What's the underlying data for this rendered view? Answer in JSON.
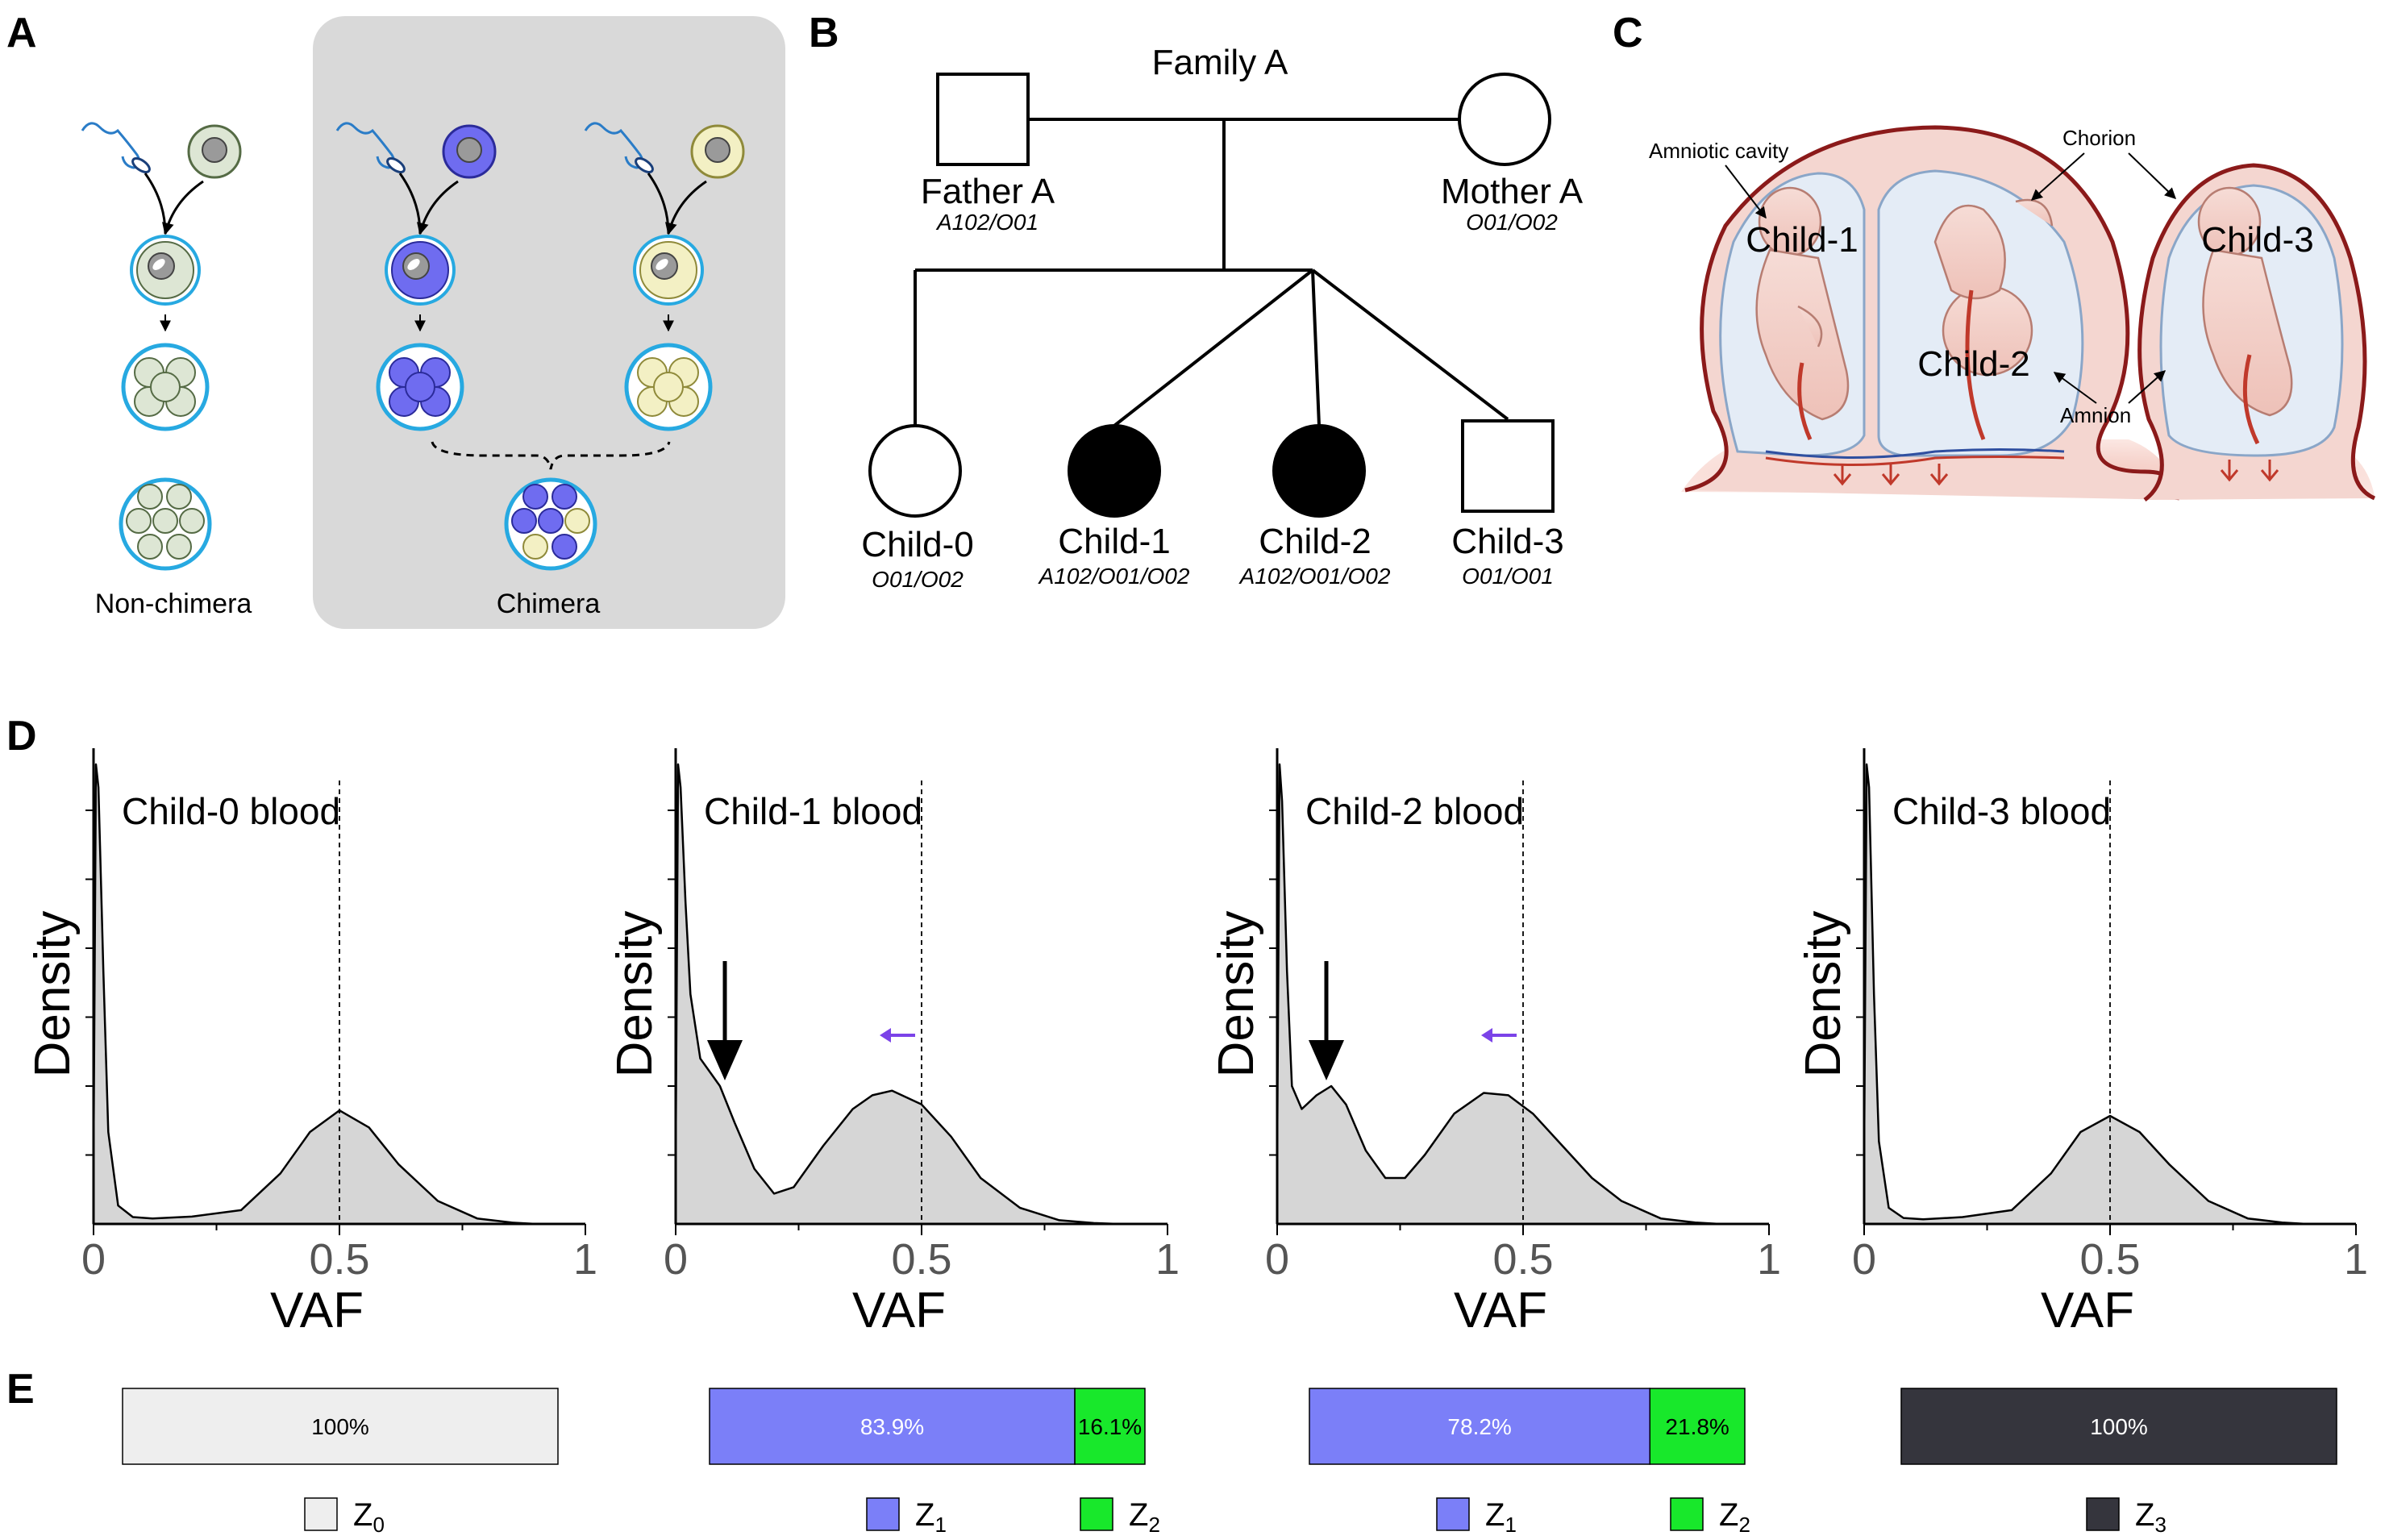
{
  "panels": {
    "A": {
      "letter": "A",
      "non_chimera_label": "Non-chimera",
      "chimera_label": "Chimera"
    },
    "B": {
      "letter": "B",
      "family_title": "Family A",
      "father": {
        "name": "Father A",
        "genotype": "A102/O01"
      },
      "mother": {
        "name": "Mother A",
        "genotype": "O01/O02"
      },
      "children": [
        {
          "name": "Child-0",
          "genotype": "O01/O02",
          "sex": "female",
          "affected": false
        },
        {
          "name": "Child-1",
          "genotype": "A102/O01/O02",
          "sex": "female",
          "affected": true
        },
        {
          "name": "Child-2",
          "genotype": "A102/O01/O02",
          "sex": "female",
          "affected": true
        },
        {
          "name": "Child-3",
          "genotype": "O01/O01",
          "sex": "male",
          "affected": false
        }
      ]
    },
    "C": {
      "letter": "C",
      "labels": {
        "amniotic_cavity": "Amniotic cavity",
        "chorion": "Chorion",
        "amnion": "Amnion",
        "child1": "Child-1",
        "child2": "Child-2",
        "child3": "Child-3"
      }
    },
    "D": {
      "letter": "D"
    },
    "E": {
      "letter": "E"
    }
  },
  "chart_data": [
    {
      "type": "area",
      "title": "Child-0 blood",
      "xlabel": "VAF",
      "ylabel": "Density",
      "xlim": [
        0,
        1
      ],
      "xticks": [
        "0",
        "0.5",
        "1"
      ],
      "reference_line_x": 0.5,
      "x": [
        0,
        0.005,
        0.01,
        0.02,
        0.03,
        0.05,
        0.08,
        0.12,
        0.2,
        0.3,
        0.38,
        0.44,
        0.5,
        0.56,
        0.62,
        0.7,
        0.78,
        0.85,
        0.9
      ],
      "y": [
        0.15,
        1.0,
        0.95,
        0.55,
        0.2,
        0.04,
        0.015,
        0.012,
        0.016,
        0.03,
        0.11,
        0.2,
        0.247,
        0.21,
        0.13,
        0.05,
        0.012,
        0.003,
        0.0
      ]
    },
    {
      "type": "area",
      "title": "Child-1 blood",
      "xlabel": "VAF",
      "ylabel": "Density",
      "xlim": [
        0,
        1
      ],
      "xticks": [
        "0",
        "0.5",
        "1"
      ],
      "reference_line_x": 0.5,
      "x": [
        0,
        0.005,
        0.01,
        0.02,
        0.03,
        0.05,
        0.07,
        0.09,
        0.12,
        0.16,
        0.2,
        0.24,
        0.3,
        0.36,
        0.4,
        0.44,
        0.5,
        0.56,
        0.62,
        0.7,
        0.78,
        0.85,
        0.9
      ],
      "y": [
        0.15,
        1.0,
        0.95,
        0.7,
        0.5,
        0.36,
        0.33,
        0.3,
        0.22,
        0.12,
        0.066,
        0.08,
        0.17,
        0.25,
        0.28,
        0.29,
        0.26,
        0.19,
        0.1,
        0.035,
        0.008,
        0.002,
        0.0
      ],
      "annotations": [
        "black arrow near VAF 0.1 (minor peak)",
        "purple arrow shifting peak left of 0.5"
      ]
    },
    {
      "type": "area",
      "title": "Child-2 blood",
      "xlabel": "VAF",
      "ylabel": "Density",
      "xlim": [
        0,
        1
      ],
      "xticks": [
        "0",
        "0.5",
        "1"
      ],
      "reference_line_x": 0.5,
      "x": [
        0,
        0.005,
        0.01,
        0.02,
        0.03,
        0.05,
        0.08,
        0.11,
        0.14,
        0.18,
        0.22,
        0.26,
        0.3,
        0.36,
        0.42,
        0.47,
        0.52,
        0.58,
        0.64,
        0.7,
        0.78,
        0.85,
        0.9
      ],
      "y": [
        0.15,
        1.0,
        0.92,
        0.55,
        0.3,
        0.25,
        0.28,
        0.3,
        0.26,
        0.16,
        0.1,
        0.1,
        0.15,
        0.24,
        0.285,
        0.28,
        0.24,
        0.17,
        0.1,
        0.05,
        0.012,
        0.003,
        0.0
      ],
      "annotations": [
        "black arrow near VAF 0.1 (minor peak)",
        "purple arrow shifting peak left of 0.5"
      ]
    },
    {
      "type": "area",
      "title": "Child-3 blood",
      "xlabel": "VAF",
      "ylabel": "Density",
      "xlim": [
        0,
        1
      ],
      "xticks": [
        "0",
        "0.5",
        "1"
      ],
      "reference_line_x": 0.5,
      "x": [
        0,
        0.005,
        0.01,
        0.02,
        0.03,
        0.05,
        0.08,
        0.12,
        0.2,
        0.3,
        0.38,
        0.44,
        0.5,
        0.56,
        0.62,
        0.7,
        0.78,
        0.85,
        0.9
      ],
      "y": [
        0.15,
        1.0,
        0.95,
        0.5,
        0.18,
        0.035,
        0.013,
        0.01,
        0.015,
        0.03,
        0.11,
        0.2,
        0.235,
        0.2,
        0.13,
        0.05,
        0.012,
        0.003,
        0.0
      ]
    },
    {
      "type": "bar",
      "orientation": "horizontal-stacked",
      "series": [
        {
          "name": "Z0",
          "label": "100%",
          "value": 100,
          "color": "#eeeeee",
          "label_color": "#000000"
        }
      ],
      "legend": [
        {
          "name": "Z",
          "sub": "0",
          "color": "#eeeeee"
        }
      ]
    },
    {
      "type": "bar",
      "orientation": "horizontal-stacked",
      "series": [
        {
          "name": "Z1",
          "label": "83.9%",
          "value": 83.9,
          "color": "#7b7ff8",
          "label_color": "#ffffff"
        },
        {
          "name": "Z2",
          "label": "16.1%",
          "value": 16.1,
          "color": "#18e82b",
          "label_color": "#000000"
        }
      ],
      "legend": [
        {
          "name": "Z",
          "sub": "1",
          "color": "#7b7ff8"
        },
        {
          "name": "Z",
          "sub": "2",
          "color": "#18e82b"
        }
      ]
    },
    {
      "type": "bar",
      "orientation": "horizontal-stacked",
      "series": [
        {
          "name": "Z1",
          "label": "78.2%",
          "value": 78.2,
          "color": "#7b7ff8",
          "label_color": "#ffffff"
        },
        {
          "name": "Z2",
          "label": "21.8%",
          "value": 21.8,
          "color": "#18e82b",
          "label_color": "#000000"
        }
      ],
      "legend": [
        {
          "name": "Z",
          "sub": "1",
          "color": "#7b7ff8"
        },
        {
          "name": "Z",
          "sub": "2",
          "color": "#18e82b"
        }
      ]
    },
    {
      "type": "bar",
      "orientation": "horizontal-stacked",
      "series": [
        {
          "name": "Z3",
          "label": "100%",
          "value": 100,
          "color": "#35353d",
          "label_color": "#ffffff"
        }
      ],
      "legend": [
        {
          "name": "Z",
          "sub": "3",
          "color": "#35353d"
        }
      ]
    }
  ],
  "colors": {
    "density_fill": "#d6d6d6",
    "chimera_bg": "#d9d9d9",
    "zona": "#27a9e1",
    "cell_green": "#dde6d4",
    "cell_blue": "#6f6cf0",
    "cell_yellow": "#f3f0c4",
    "chorion": "#8b1a1a",
    "purple_arrow": "#7b43e8"
  }
}
